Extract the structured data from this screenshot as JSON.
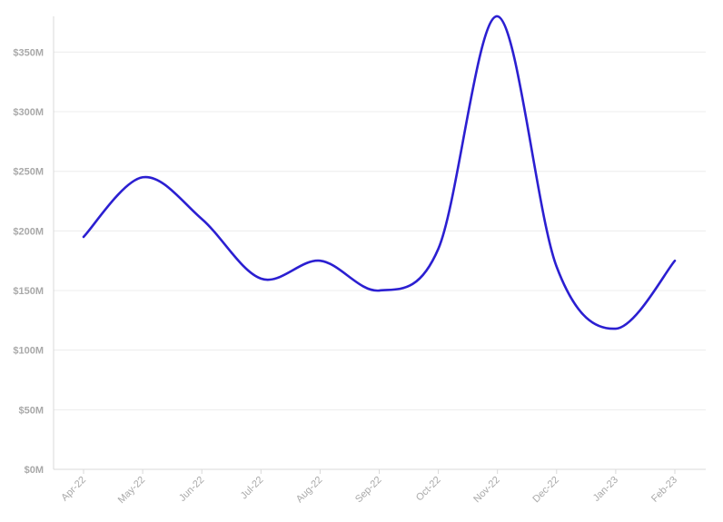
{
  "chart_data": {
    "type": "line",
    "categories": [
      "Apr-22",
      "May-22",
      "Jun-22",
      "Jul-22",
      "Aug-22",
      "Sep-22",
      "Oct-22",
      "Nov-22",
      "Dec-22",
      "Jan-23",
      "Feb-23"
    ],
    "series": [
      {
        "values": [
          195,
          245,
          210,
          160,
          175,
          150,
          185,
          380,
          170,
          118,
          175
        ]
      }
    ],
    "ylim": [
      0,
      350
    ],
    "yticks": [
      "$0M",
      "$50M",
      "$100M",
      "$150M",
      "$200M",
      "$250M",
      "$300M",
      "$350M"
    ],
    "grid": true,
    "legend": "none",
    "smooth": true,
    "colors": {
      "line": "#2b1fd1"
    }
  }
}
